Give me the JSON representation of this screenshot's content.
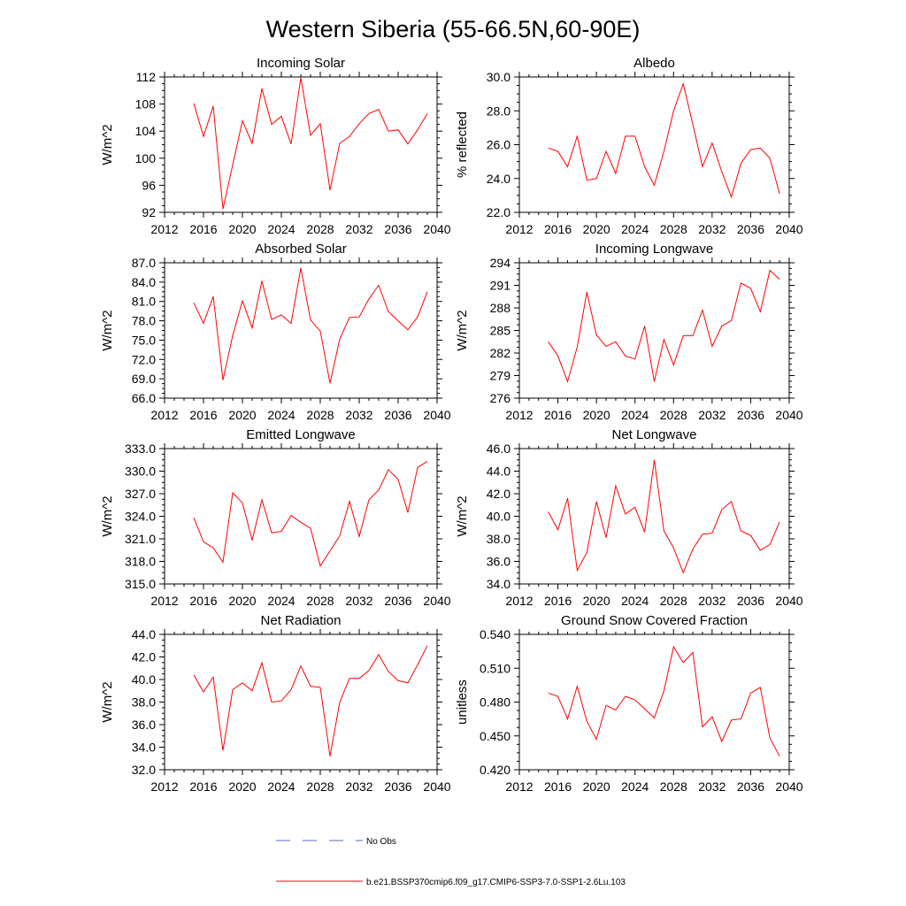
{
  "title": "Western Siberia (55-66.5N,60-90E)",
  "legend": {
    "entries": [
      {
        "label": "No Obs",
        "color": "#5566cc",
        "dash": true
      },
      {
        "label": "b.e21.BSSP370cmip6.f09_g17.CMIP6-SSP3-7.0-SSP1-2.6Lu.103",
        "color": "#ff0000",
        "dash": false
      }
    ]
  },
  "series_color": "#ff0000",
  "chart_data": [
    {
      "type": "line",
      "title": "Incoming Solar",
      "ylabel": "W/m^2",
      "xlim": [
        2012,
        2040
      ],
      "x_ticks": [
        "2012",
        "2016",
        "2020",
        "2024",
        "2028",
        "2032",
        "2036",
        "2040"
      ],
      "ylim": [
        92,
        112
      ],
      "y_ticks": [
        "92",
        "96",
        "100",
        "104",
        "108",
        "112"
      ],
      "x": [
        2015,
        2016,
        2017,
        2018,
        2019,
        2020,
        2021,
        2022,
        2023,
        2024,
        2025,
        2026,
        2027,
        2028,
        2029,
        2030,
        2031,
        2032,
        2033,
        2034,
        2035,
        2036,
        2037,
        2038,
        2039
      ],
      "values": [
        108.1,
        103.2,
        107.7,
        92.5,
        99.0,
        105.5,
        102.2,
        110.3,
        105.0,
        106.2,
        102.1,
        111.9,
        103.4,
        105.1,
        95.3,
        102.2,
        103.2,
        105.1,
        106.6,
        107.2,
        104.0,
        104.2,
        102.1,
        104.2,
        106.6
      ]
    },
    {
      "type": "line",
      "title": "Albedo",
      "ylabel": "% reflected",
      "xlim": [
        2012,
        2040
      ],
      "x_ticks": [
        "2012",
        "2016",
        "2020",
        "2024",
        "2028",
        "2032",
        "2036",
        "2040"
      ],
      "ylim": [
        22.0,
        30.0
      ],
      "y_ticks": [
        "22.0",
        "24.0",
        "26.0",
        "28.0",
        "30.0"
      ],
      "x": [
        2015,
        2016,
        2017,
        2018,
        2019,
        2020,
        2021,
        2022,
        2023,
        2024,
        2025,
        2026,
        2027,
        2028,
        2029,
        2030,
        2031,
        2032,
        2033,
        2034,
        2035,
        2036,
        2037,
        2038,
        2039
      ],
      "values": [
        25.8,
        25.6,
        24.7,
        26.5,
        23.9,
        24.0,
        25.6,
        24.3,
        26.5,
        26.5,
        24.7,
        23.6,
        25.6,
        28.0,
        29.6,
        27.2,
        24.7,
        26.1,
        24.4,
        22.9,
        24.9,
        25.7,
        25.8,
        25.2,
        23.1
      ]
    },
    {
      "type": "line",
      "title": "Absorbed Solar",
      "ylabel": "W/m^2",
      "xlim": [
        2012,
        2040
      ],
      "x_ticks": [
        "2012",
        "2016",
        "2020",
        "2024",
        "2028",
        "2032",
        "2036",
        "2040"
      ],
      "ylim": [
        66.0,
        87.0
      ],
      "y_ticks": [
        "66.0",
        "69.0",
        "72.0",
        "75.0",
        "78.0",
        "81.0",
        "84.0",
        "87.0"
      ],
      "x": [
        2015,
        2016,
        2017,
        2018,
        2019,
        2020,
        2021,
        2022,
        2023,
        2024,
        2025,
        2026,
        2027,
        2028,
        2029,
        2030,
        2031,
        2032,
        2033,
        2034,
        2035,
        2036,
        2037,
        2038,
        2039
      ],
      "values": [
        80.8,
        77.6,
        81.8,
        68.8,
        75.7,
        81.1,
        76.9,
        84.2,
        78.2,
        78.9,
        77.6,
        86.2,
        78.1,
        76.4,
        68.3,
        75.2,
        78.5,
        78.6,
        81.4,
        83.5,
        79.4,
        78.0,
        76.6,
        78.6,
        82.5
      ]
    },
    {
      "type": "line",
      "title": "Incoming Longwave",
      "ylabel": "W/m^2",
      "xlim": [
        2012,
        2040
      ],
      "x_ticks": [
        "2012",
        "2016",
        "2020",
        "2024",
        "2028",
        "2032",
        "2036",
        "2040"
      ],
      "ylim": [
        276,
        294
      ],
      "y_ticks": [
        "276",
        "279",
        "282",
        "285",
        "288",
        "291",
        "294"
      ],
      "x": [
        2015,
        2016,
        2017,
        2018,
        2019,
        2020,
        2021,
        2022,
        2023,
        2024,
        2025,
        2026,
        2027,
        2028,
        2029,
        2030,
        2031,
        2032,
        2033,
        2034,
        2035,
        2036,
        2037,
        2038,
        2039
      ],
      "values": [
        283.5,
        281.6,
        278.2,
        282.8,
        290.1,
        284.4,
        282.9,
        283.5,
        281.6,
        281.2,
        285.6,
        278.2,
        283.8,
        280.4,
        284.3,
        284.3,
        287.7,
        282.9,
        285.6,
        286.3,
        291.3,
        290.6,
        287.5,
        293.0,
        291.8
      ]
    },
    {
      "type": "line",
      "title": "Emitted Longwave",
      "ylabel": "W/m^2",
      "xlim": [
        2012,
        2040
      ],
      "x_ticks": [
        "2012",
        "2016",
        "2020",
        "2024",
        "2028",
        "2032",
        "2036",
        "2040"
      ],
      "ylim": [
        315.0,
        333.0
      ],
      "y_ticks": [
        "315.0",
        "318.0",
        "321.0",
        "324.0",
        "327.0",
        "330.0",
        "333.0"
      ],
      "x": [
        2015,
        2016,
        2017,
        2018,
        2019,
        2020,
        2021,
        2022,
        2023,
        2024,
        2025,
        2026,
        2027,
        2028,
        2029,
        2030,
        2031,
        2032,
        2033,
        2034,
        2035,
        2036,
        2037,
        2038,
        2039
      ],
      "values": [
        323.8,
        320.6,
        319.8,
        317.9,
        327.1,
        325.8,
        320.8,
        326.2,
        321.8,
        322.0,
        324.1,
        323.2,
        322.4,
        317.4,
        319.4,
        321.4,
        326.0,
        321.3,
        326.2,
        327.5,
        330.2,
        328.9,
        324.5,
        330.5,
        331.3
      ]
    },
    {
      "type": "line",
      "title": "Net Longwave",
      "ylabel": "W/m^2",
      "xlim": [
        2012,
        2040
      ],
      "x_ticks": [
        "2012",
        "2016",
        "2020",
        "2024",
        "2028",
        "2032",
        "2036",
        "2040"
      ],
      "ylim": [
        34.0,
        46.0
      ],
      "y_ticks": [
        "34.0",
        "36.0",
        "38.0",
        "40.0",
        "42.0",
        "44.0",
        "46.0"
      ],
      "x": [
        2015,
        2016,
        2017,
        2018,
        2019,
        2020,
        2021,
        2022,
        2023,
        2024,
        2025,
        2026,
        2027,
        2028,
        2029,
        2030,
        2031,
        2032,
        2033,
        2034,
        2035,
        2036,
        2037,
        2038,
        2039
      ],
      "values": [
        40.4,
        38.8,
        41.6,
        35.2,
        36.8,
        41.3,
        38.1,
        42.7,
        40.2,
        40.8,
        38.6,
        45.0,
        38.7,
        37.2,
        35.0,
        37.1,
        38.4,
        38.5,
        40.6,
        41.3,
        38.7,
        38.3,
        37.0,
        37.5,
        39.5
      ]
    },
    {
      "type": "line",
      "title": "Net Radiation",
      "ylabel": "W/m^2",
      "xlim": [
        2012,
        2040
      ],
      "x_ticks": [
        "2012",
        "2016",
        "2020",
        "2024",
        "2028",
        "2032",
        "2036",
        "2040"
      ],
      "ylim": [
        32.0,
        44.0
      ],
      "y_ticks": [
        "32.0",
        "34.0",
        "36.0",
        "38.0",
        "40.0",
        "42.0",
        "44.0"
      ],
      "x": [
        2015,
        2016,
        2017,
        2018,
        2019,
        2020,
        2021,
        2022,
        2023,
        2024,
        2025,
        2026,
        2027,
        2028,
        2029,
        2030,
        2031,
        2032,
        2033,
        2034,
        2035,
        2036,
        2037,
        2038,
        2039
      ],
      "values": [
        40.4,
        38.9,
        40.2,
        33.7,
        39.1,
        39.7,
        39.0,
        41.5,
        38.0,
        38.1,
        39.1,
        41.2,
        39.4,
        39.3,
        33.2,
        38.0,
        40.1,
        40.1,
        40.8,
        42.2,
        40.7,
        39.9,
        39.7,
        41.3,
        43.0
      ]
    },
    {
      "type": "line",
      "title": "Ground Snow Covered Fraction",
      "ylabel": "unitless",
      "xlim": [
        2012,
        2040
      ],
      "x_ticks": [
        "2012",
        "2016",
        "2020",
        "2024",
        "2028",
        "2032",
        "2036",
        "2040"
      ],
      "ylim": [
        0.42,
        0.54
      ],
      "y_ticks": [
        "0.420",
        "0.450",
        "0.480",
        "0.510",
        "0.540"
      ],
      "x": [
        2015,
        2016,
        2017,
        2018,
        2019,
        2020,
        2021,
        2022,
        2023,
        2024,
        2025,
        2026,
        2027,
        2028,
        2029,
        2030,
        2031,
        2032,
        2033,
        2034,
        2035,
        2036,
        2037,
        2038,
        2039
      ],
      "values": [
        0.488,
        0.485,
        0.465,
        0.494,
        0.463,
        0.447,
        0.477,
        0.473,
        0.485,
        0.482,
        0.474,
        0.466,
        0.49,
        0.529,
        0.515,
        0.524,
        0.458,
        0.467,
        0.445,
        0.464,
        0.465,
        0.488,
        0.493,
        0.448,
        0.432
      ]
    }
  ]
}
